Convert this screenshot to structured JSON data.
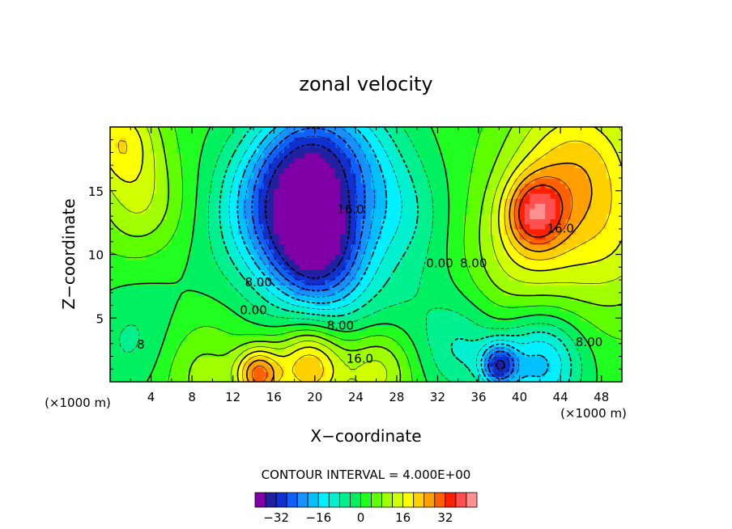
{
  "chart_data": {
    "type": "heatmap",
    "title": "zonal velocity",
    "xlabel": "X−coordinate",
    "ylabel": "Z−coordinate",
    "x_unit_left": "(×1000 m)",
    "x_unit_right": "(×1000 m)",
    "xlim": [
      0,
      50
    ],
    "ylim": [
      0,
      20
    ],
    "x_ticks": [
      4,
      8,
      12,
      16,
      20,
      24,
      28,
      32,
      36,
      40,
      44,
      48
    ],
    "x_tick_labels": [
      "4",
      "8",
      "12",
      "16",
      "20",
      "24",
      "28",
      "32",
      "36",
      "40",
      "44",
      "48"
    ],
    "y_ticks": [
      5,
      10,
      15
    ],
    "y_tick_labels": [
      "5",
      "10",
      "15"
    ],
    "contour_interval_text": "CONTOUR INTERVAL = 4.000E+00",
    "contour_interval": 4,
    "colorbar": {
      "levels": [
        -40,
        -36,
        -32,
        -28,
        -24,
        -20,
        -16,
        -12,
        -8,
        -4,
        0,
        4,
        8,
        12,
        16,
        20,
        24,
        28,
        32,
        36,
        40
      ],
      "colors": [
        "#8000a8",
        "#2020a0",
        "#1030d0",
        "#1060ff",
        "#1890ff",
        "#00c0ff",
        "#00f0ff",
        "#00f0d0",
        "#00f090",
        "#00f060",
        "#20ff20",
        "#60ff00",
        "#a0ff00",
        "#d0ff00",
        "#ffff00",
        "#ffd000",
        "#ffa000",
        "#ff6000",
        "#ff2000",
        "#ff5050",
        "#ff9090"
      ],
      "tick_values": [
        -32,
        -16,
        0,
        16,
        32
      ],
      "tick_labels": [
        "−32",
        "−16",
        "0",
        "16",
        "32"
      ]
    },
    "contour_labels": [
      {
        "text": "16.0",
        "x": 23.5,
        "z": 13.2
      },
      {
        "text": "16.0",
        "x": 44,
        "z": 11.7
      },
      {
        "text": "8.00",
        "x": 35.5,
        "z": 9.0
      },
      {
        "text": "0.00",
        "x": 32.2,
        "z": 9.0
      },
      {
        "text": "8.00",
        "x": 14.5,
        "z": 7.5
      },
      {
        "text": "0.00",
        "x": 14,
        "z": 5.3
      },
      {
        "text": "8.00",
        "x": 22.5,
        "z": 4.1
      },
      {
        "text": "16.0",
        "x": 24.4,
        "z": 1.5
      },
      {
        "text": "8.00",
        "x": 46.8,
        "z": 2.8
      },
      {
        "text": "8",
        "x": 3,
        "z": 2.6
      }
    ],
    "field_sources": [
      {
        "x": 16.2,
        "z": 13.5,
        "v": -24,
        "r": 4.0
      },
      {
        "x": 20.2,
        "z": 10.5,
        "v": -24,
        "r": 3.0
      },
      {
        "x": 19.5,
        "z": 17.5,
        "v": -20,
        "r": 3.5
      },
      {
        "x": 24,
        "z": 16.5,
        "v": -14,
        "r": 4.0
      },
      {
        "x": 22,
        "z": 7.5,
        "v": -10,
        "r": 4.5
      },
      {
        "x": 45.5,
        "z": 16.5,
        "v": 20,
        "r": 4.5
      },
      {
        "x": 41.5,
        "z": 13.3,
        "v": 22,
        "r": 2.0
      },
      {
        "x": 40,
        "z": 9.5,
        "v": 10,
        "r": 4.0
      },
      {
        "x": 49.5,
        "z": 10,
        "v": 8,
        "r": 4.0
      },
      {
        "x": 19.5,
        "z": 1.3,
        "v": 24,
        "r": 2.3
      },
      {
        "x": 14.5,
        "z": 0.6,
        "v": 26,
        "r": 1.5
      },
      {
        "x": 26,
        "z": 1.0,
        "v": 14,
        "r": 2.5
      },
      {
        "x": 9,
        "z": 0.8,
        "v": 8,
        "r": 3.0
      },
      {
        "x": 42,
        "z": 1.5,
        "v": -20,
        "r": 2.8
      },
      {
        "x": 38,
        "z": 1.3,
        "v": -26,
        "r": 1.2
      },
      {
        "x": 34.5,
        "z": 2.5,
        "v": -8,
        "r": 2.5
      },
      {
        "x": 1,
        "z": 19,
        "v": 16,
        "r": 2.5
      },
      {
        "x": 3,
        "z": 14,
        "v": 10,
        "r": 3.0
      },
      {
        "x": 6,
        "z": 7,
        "v": -2,
        "r": 4.0
      },
      {
        "x": 2,
        "z": 3,
        "v": -6,
        "r": 3.0
      },
      {
        "x": 29,
        "z": 13,
        "v": -6,
        "r": 3.0
      },
      {
        "x": 32,
        "z": 5,
        "v": -4,
        "r": 4.0
      }
    ]
  }
}
